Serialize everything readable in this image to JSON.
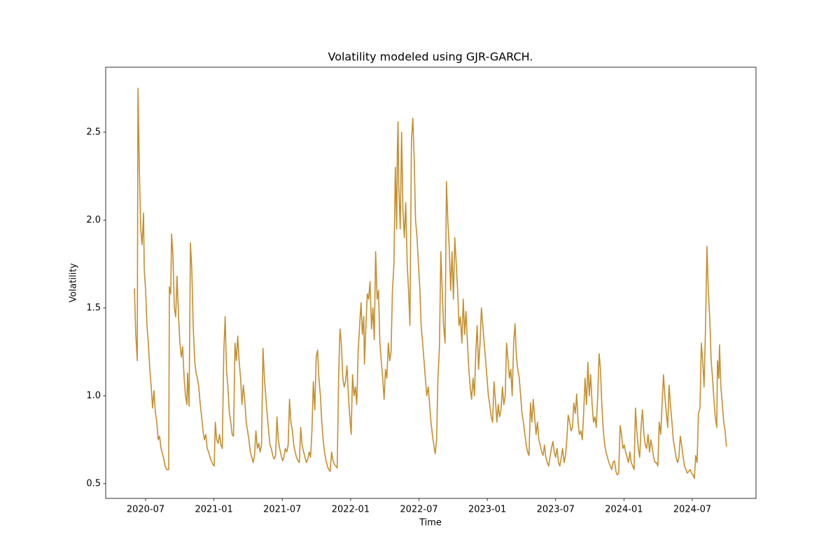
{
  "chart_data": {
    "type": "line",
    "title": "Volatility modeled using GJR-GARCH.",
    "x_label": "Time",
    "y_label": "Volatility",
    "color": "#c48f2f",
    "grid": false,
    "xlim": [
      2020.208,
      2024.966
    ],
    "ylim": [
      0.416,
      2.87
    ],
    "xticks": [
      {
        "value": 2020.5,
        "label": "2020-07"
      },
      {
        "value": 2021.0,
        "label": "2021-01"
      },
      {
        "value": 2021.5,
        "label": "2021-07"
      },
      {
        "value": 2022.0,
        "label": "2022-01"
      },
      {
        "value": 2022.5,
        "label": "2022-07"
      },
      {
        "value": 2023.0,
        "label": "2023-01"
      },
      {
        "value": 2023.5,
        "label": "2023-07"
      },
      {
        "value": 2024.0,
        "label": "2024-01"
      },
      {
        "value": 2024.5,
        "label": "2024-07"
      }
    ],
    "yticks": [
      0.5,
      {
        "value": 1,
        "label": "1.0"
      },
      1.5,
      {
        "value": 2,
        "label": "2.0"
      },
      2.5
    ],
    "x": [
      2020.418,
      2020.428,
      2020.439,
      2020.444,
      2020.454,
      2020.464,
      2020.474,
      2020.485,
      2020.49,
      2020.5,
      2020.51,
      2020.52,
      2020.531,
      2020.541,
      2020.551,
      2020.561,
      2020.572,
      2020.582,
      2020.592,
      2020.602,
      2020.613,
      2020.623,
      2020.633,
      2020.643,
      2020.654,
      2020.669,
      2020.674,
      2020.684,
      2020.69,
      2020.7,
      2020.71,
      2020.72,
      2020.73,
      2020.741,
      2020.751,
      2020.761,
      2020.771,
      2020.782,
      2020.792,
      2020.802,
      2020.807,
      2020.818,
      2020.828,
      2020.838,
      2020.848,
      2020.859,
      2020.869,
      2020.879,
      2020.889,
      2020.9,
      2020.91,
      2020.92,
      2020.93,
      2020.94,
      2020.951,
      2020.961,
      2020.971,
      2020.981,
      2020.992,
      2021.002,
      2021.01,
      2021.02,
      2021.031,
      2021.041,
      2021.051,
      2021.061,
      2021.072,
      2021.082,
      2021.092,
      2021.102,
      2021.113,
      2021.123,
      2021.133,
      2021.143,
      2021.154,
      2021.164,
      2021.174,
      2021.184,
      2021.195,
      2021.205,
      2021.215,
      2021.225,
      2021.236,
      2021.246,
      2021.256,
      2021.266,
      2021.277,
      2021.287,
      2021.297,
      2021.307,
      2021.318,
      2021.328,
      2021.338,
      2021.348,
      2021.359,
      2021.369,
      2021.379,
      2021.389,
      2021.4,
      2021.41,
      2021.42,
      2021.43,
      2021.44,
      2021.451,
      2021.461,
      2021.471,
      2021.481,
      2021.492,
      2021.502,
      2021.512,
      2021.522,
      2021.533,
      2021.543,
      2021.553,
      2021.563,
      2021.574,
      2021.584,
      2021.594,
      2021.604,
      2021.615,
      2021.625,
      2021.635,
      2021.645,
      2021.656,
      2021.666,
      2021.676,
      2021.686,
      2021.697,
      2021.707,
      2021.717,
      2021.727,
      2021.738,
      2021.748,
      2021.758,
      2021.768,
      2021.779,
      2021.789,
      2021.799,
      2021.809,
      2021.82,
      2021.83,
      2021.84,
      2021.85,
      2021.861,
      2021.871,
      2021.881,
      2021.891,
      2021.902,
      2021.912,
      2021.922,
      2021.932,
      2021.943,
      2021.953,
      2021.963,
      2021.973,
      2021.984,
      2021.994,
      2022.004,
      2022.014,
      2022.025,
      2022.035,
      2022.045,
      2022.055,
      2022.066,
      2022.076,
      2022.086,
      2022.096,
      2022.101,
      2022.112,
      2022.122,
      2022.132,
      2022.142,
      2022.153,
      2022.163,
      2022.173,
      2022.183,
      2022.194,
      2022.204,
      2022.214,
      2022.224,
      2022.235,
      2022.245,
      2022.255,
      2022.265,
      2022.276,
      2022.286,
      2022.296,
      2022.306,
      2022.317,
      2022.327,
      2022.337,
      2022.342,
      2022.347,
      2022.352,
      2022.363,
      2022.373,
      2022.383,
      2022.393,
      2022.403,
      2022.414,
      2022.424,
      2022.434,
      2022.445,
      2022.455,
      2022.465,
      2022.475,
      2022.486,
      2022.496,
      2022.506,
      2022.516,
      2022.527,
      2022.537,
      2022.547,
      2022.557,
      2022.568,
      2022.578,
      2022.588,
      2022.598,
      2022.609,
      2022.619,
      2022.629,
      2022.639,
      2022.65,
      2022.66,
      2022.67,
      2022.68,
      2022.691,
      2022.701,
      2022.711,
      2022.721,
      2022.732,
      2022.742,
      2022.752,
      2022.762,
      2022.773,
      2022.783,
      2022.793,
      2022.803,
      2022.814,
      2022.824,
      2022.834,
      2022.844,
      2022.855,
      2022.865,
      2022.875,
      2022.885,
      2022.896,
      2022.906,
      2022.916,
      2022.926,
      2022.936,
      2022.947,
      2022.957,
      2022.967,
      2022.977,
      2022.988,
      2022.998,
      2023.008,
      2023.018,
      2023.029,
      2023.039,
      2023.049,
      2023.059,
      2023.07,
      2023.08,
      2023.09,
      2023.1,
      2023.111,
      2023.121,
      2023.131,
      2023.141,
      2023.152,
      2023.162,
      2023.172,
      2023.182,
      2023.193,
      2023.203,
      2023.213,
      2023.223,
      2023.234,
      2023.244,
      2023.254,
      2023.264,
      2023.275,
      2023.285,
      2023.295,
      2023.305,
      2023.316,
      2023.326,
      2023.336,
      2023.346,
      2023.357,
      2023.367,
      2023.377,
      2023.387,
      2023.398,
      2023.408,
      2023.418,
      2023.428,
      2023.439,
      2023.449,
      2023.459,
      2023.469,
      2023.48,
      2023.49,
      2023.5,
      2023.51,
      2023.521,
      2023.531,
      2023.541,
      2023.551,
      2023.562,
      2023.572,
      2023.582,
      2023.592,
      2023.603,
      2023.613,
      2023.623,
      2023.633,
      2023.644,
      2023.654,
      2023.664,
      2023.674,
      2023.685,
      2023.695,
      2023.705,
      2023.715,
      2023.726,
      2023.736,
      2023.746,
      2023.756,
      2023.767,
      2023.777,
      2023.787,
      2023.797,
      2023.808,
      2023.818,
      2023.828,
      2023.838,
      2023.849,
      2023.859,
      2023.869,
      2023.879,
      2023.89,
      2023.9,
      2023.91,
      2023.92,
      2023.931,
      2023.941,
      2023.951,
      2023.961,
      2023.972,
      2023.982,
      2023.992,
      2024.002,
      2024.012,
      2024.023,
      2024.033,
      2024.043,
      2024.053,
      2024.064,
      2024.074,
      2024.084,
      2024.094,
      2024.105,
      2024.115,
      2024.125,
      2024.135,
      2024.146,
      2024.156,
      2024.166,
      2024.176,
      2024.187,
      2024.197,
      2024.207,
      2024.217,
      2024.228,
      2024.238,
      2024.248,
      2024.258,
      2024.269,
      2024.279,
      2024.289,
      2024.299,
      2024.31,
      2024.32,
      2024.33,
      2024.34,
      2024.351,
      2024.361,
      2024.371,
      2024.381,
      2024.392,
      2024.402,
      2024.412,
      2024.422,
      2024.433,
      2024.443,
      2024.453,
      2024.463,
      2024.474,
      2024.484,
      2024.494,
      2024.504,
      2024.515,
      2024.525,
      2024.535,
      2024.545,
      2024.556,
      2024.566,
      2024.576,
      2024.586,
      2024.597,
      2024.607,
      2024.617,
      2024.627,
      2024.638,
      2024.648,
      2024.658,
      2024.668,
      2024.679,
      2024.684,
      2024.694,
      2024.699,
      2024.709,
      2024.72,
      2024.73,
      2024.74,
      2024.75
    ],
    "values": [
      1.61,
      1.35,
      1.2,
      2.75,
      2.3,
      1.95,
      1.86,
      2.04,
      1.72,
      1.6,
      1.4,
      1.3,
      1.15,
      1.05,
      0.93,
      1.03,
      0.9,
      0.85,
      0.75,
      0.77,
      0.7,
      0.67,
      0.64,
      0.6,
      0.58,
      0.58,
      1.62,
      1.58,
      1.92,
      1.8,
      1.5,
      1.45,
      1.68,
      1.45,
      1.3,
      1.22,
      1.28,
      1.1,
      1.0,
      0.95,
      1.13,
      0.94,
      1.87,
      1.72,
      1.4,
      1.2,
      1.13,
      1.1,
      1.05,
      0.95,
      0.88,
      0.8,
      0.75,
      0.78,
      0.7,
      0.68,
      0.65,
      0.63,
      0.61,
      0.6,
      0.85,
      0.75,
      0.73,
      0.78,
      0.72,
      0.7,
      1.25,
      1.45,
      1.15,
      1.05,
      0.9,
      0.85,
      0.78,
      0.77,
      1.3,
      1.2,
      1.34,
      1.2,
      1.1,
      0.95,
      1.06,
      0.98,
      0.85,
      0.8,
      0.75,
      0.68,
      0.65,
      0.62,
      0.66,
      0.8,
      0.7,
      0.73,
      0.68,
      0.72,
      1.27,
      1.1,
      1.0,
      0.9,
      0.8,
      0.72,
      0.7,
      0.66,
      0.64,
      0.66,
      0.88,
      0.75,
      0.7,
      0.66,
      0.63,
      0.65,
      0.7,
      0.68,
      0.72,
      0.98,
      0.85,
      0.8,
      0.72,
      0.68,
      0.65,
      0.63,
      0.62,
      0.82,
      0.72,
      0.68,
      0.65,
      0.62,
      0.64,
      0.68,
      0.65,
      0.8,
      1.08,
      0.92,
      1.22,
      1.26,
      1.1,
      1.0,
      0.85,
      0.75,
      0.68,
      0.63,
      0.6,
      0.58,
      0.57,
      0.68,
      0.63,
      0.61,
      0.6,
      0.59,
      1.1,
      1.38,
      1.3,
      1.1,
      1.05,
      1.08,
      1.17,
      1.0,
      0.88,
      0.78,
      1.12,
      1.0,
      1.05,
      0.95,
      1.25,
      1.4,
      1.53,
      1.35,
      1.45,
      1.18,
      1.4,
      1.58,
      1.55,
      1.65,
      1.38,
      1.5,
      1.32,
      1.82,
      1.55,
      1.6,
      1.3,
      1.2,
      1.1,
      0.98,
      1.15,
      1.1,
      1.3,
      1.2,
      1.25,
      1.6,
      1.75,
      2.3,
      1.95,
      2.4,
      2.56,
      2.2,
      1.95,
      2.5,
      2.05,
      1.9,
      2.1,
      1.75,
      1.6,
      1.4,
      2.45,
      2.58,
      2.35,
      2.0,
      1.9,
      1.75,
      1.62,
      1.4,
      1.3,
      1.2,
      1.1,
      1.0,
      1.05,
      0.95,
      0.85,
      0.78,
      0.72,
      0.67,
      0.75,
      1.1,
      1.28,
      1.82,
      1.6,
      1.4,
      1.3,
      2.22,
      2.0,
      1.85,
      1.6,
      1.82,
      1.55,
      1.9,
      1.75,
      1.6,
      1.4,
      1.45,
      1.3,
      1.55,
      1.35,
      1.48,
      1.3,
      1.15,
      1.05,
      0.98,
      1.1,
      1.0,
      1.25,
      1.4,
      1.15,
      1.3,
      1.5,
      1.4,
      1.3,
      1.2,
      1.1,
      1.0,
      0.95,
      0.88,
      0.85,
      1.08,
      0.98,
      0.85,
      0.95,
      0.88,
      0.92,
      1.05,
      0.95,
      1.0,
      1.3,
      1.2,
      1.1,
      1.15,
      1.0,
      1.3,
      1.41,
      1.22,
      1.15,
      1.1,
      1.0,
      0.9,
      0.85,
      0.78,
      0.72,
      0.68,
      0.66,
      0.96,
      0.85,
      0.98,
      0.88,
      0.78,
      0.85,
      0.75,
      0.72,
      0.68,
      0.66,
      0.72,
      0.65,
      0.62,
      0.6,
      0.65,
      0.7,
      0.74,
      0.68,
      0.65,
      0.7,
      0.62,
      0.6,
      0.65,
      0.7,
      0.62,
      0.66,
      0.75,
      0.89,
      0.85,
      0.8,
      0.82,
      0.96,
      0.9,
      1.01,
      0.85,
      0.78,
      0.8,
      0.75,
      0.9,
      1.1,
      0.95,
      1.19,
      1.0,
      1.12,
      0.95,
      0.85,
      0.88,
      0.82,
      1.0,
      1.24,
      1.15,
      0.95,
      0.8,
      0.72,
      0.68,
      0.65,
      0.62,
      0.6,
      0.58,
      0.62,
      0.63,
      0.57,
      0.55,
      0.56,
      0.83,
      0.78,
      0.7,
      0.72,
      0.68,
      0.65,
      0.62,
      0.68,
      0.62,
      0.6,
      0.58,
      0.93,
      0.8,
      0.7,
      0.65,
      0.82,
      0.92,
      0.78,
      0.72,
      0.7,
      0.78,
      0.68,
      0.75,
      0.7,
      0.65,
      0.62,
      0.62,
      0.6,
      0.85,
      0.78,
      0.95,
      1.12,
      1.0,
      0.9,
      0.82,
      1.06,
      0.95,
      0.85,
      0.75,
      0.7,
      0.65,
      0.62,
      0.65,
      0.77,
      0.72,
      0.65,
      0.6,
      0.58,
      0.56,
      0.57,
      0.58,
      0.56,
      0.55,
      0.53,
      0.66,
      0.62,
      0.9,
      0.93,
      1.3,
      1.2,
      1.05,
      1.4,
      1.85,
      1.6,
      1.45,
      1.2,
      1.1,
      0.98,
      0.88,
      0.82,
      1.2,
      1.1,
      1.29,
      1.05,
      0.95,
      0.85,
      0.8,
      0.71
    ]
  }
}
